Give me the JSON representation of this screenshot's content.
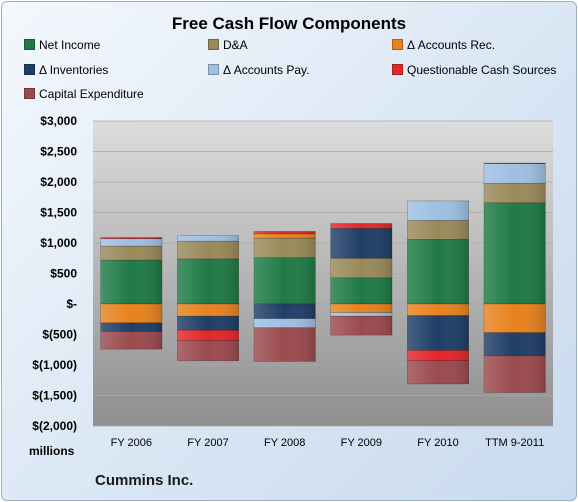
{
  "chart_data": {
    "type": "bar",
    "stacked": true,
    "title": "Free Cash Flow Components",
    "subtitle": "",
    "xlabel": "",
    "ylabel": "",
    "units_label": "millions",
    "footer_label": "Cummins Inc.",
    "categories": [
      "FY 2006",
      "FY 2007",
      "FY 2008",
      "FY 2009",
      "FY 2010",
      "TTM 9-2011"
    ],
    "ylim": [
      -2000,
      3000
    ],
    "yticks": [
      3000,
      2500,
      2000,
      1500,
      1000,
      500,
      0,
      -500,
      -1000,
      -1500,
      -2000
    ],
    "ytick_labels": [
      "$3,000",
      "$2,500",
      "$2,000",
      "$1,500",
      "$1,000",
      "$500",
      "$-",
      "$(500)",
      "$(1,000)",
      "$(1,500)",
      "$(2,000)"
    ],
    "grid": true,
    "legend_position": "top",
    "series": [
      {
        "name": "Net Income",
        "color": "#1f7a45",
        "values": [
          720,
          740,
          760,
          430,
          1060,
          1660
        ]
      },
      {
        "name": "D&A",
        "color": "#9a8a5a",
        "values": [
          230,
          290,
          320,
          320,
          310,
          320
        ]
      },
      {
        "name": "Δ Accounts Rec.",
        "color": "#e8821e",
        "values": [
          -310,
          -200,
          70,
          -140,
          -190,
          -470
        ]
      },
      {
        "name": "Δ Inventories",
        "color": "#1f3e66",
        "values": [
          -140,
          -230,
          -240,
          490,
          -570,
          -380
        ]
      },
      {
        "name": "Δ Accounts Pay.",
        "color": "#9fbfe3",
        "values": [
          120,
          90,
          -150,
          -60,
          320,
          320
        ]
      },
      {
        "name": "Questionable Cash Sources",
        "color": "#e3262b",
        "values": [
          20,
          -170,
          40,
          80,
          -170,
          10
        ]
      },
      {
        "name": "Capital Expenditure",
        "color": "#9b4a4e",
        "values": [
          -290,
          -330,
          -550,
          -310,
          -380,
          -600
        ]
      }
    ]
  }
}
